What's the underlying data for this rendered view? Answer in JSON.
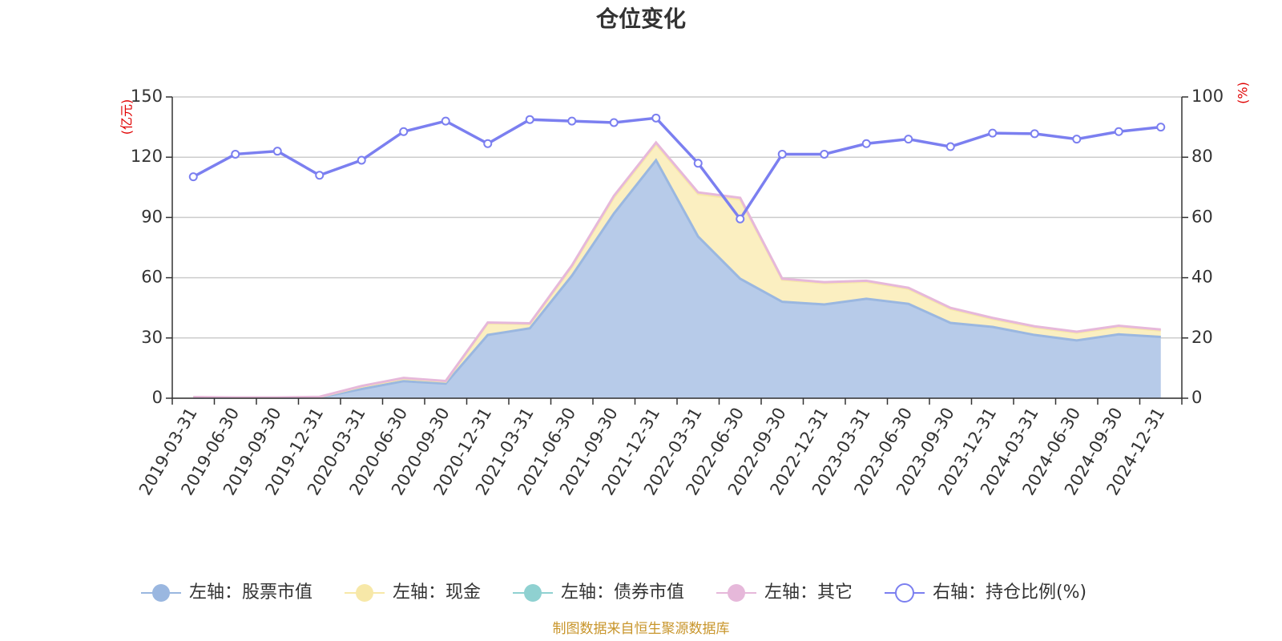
{
  "chart_data": {
    "type": "area",
    "title": "仓位变化",
    "left_axis_unit": "(亿元)",
    "right_axis_unit": "(%)",
    "categories": [
      "2019-03-31",
      "2019-06-30",
      "2019-09-30",
      "2019-12-31",
      "2020-03-31",
      "2020-06-30",
      "2020-09-30",
      "2020-12-31",
      "2021-03-31",
      "2021-06-30",
      "2021-09-30",
      "2021-12-31",
      "2022-03-31",
      "2022-06-30",
      "2022-09-30",
      "2022-12-31",
      "2023-03-31",
      "2023-06-30",
      "2023-09-30",
      "2023-12-31",
      "2024-03-31",
      "2024-06-30",
      "2024-09-30",
      "2024-12-31"
    ],
    "ylim_left": [
      0,
      150
    ],
    "yticks_left": [
      "0",
      "30",
      "60",
      "90",
      "120",
      "150"
    ],
    "ylim_right": [
      0,
      100
    ],
    "yticks_right": [
      "0",
      "20",
      "40",
      "60",
      "80",
      "100"
    ],
    "grid": true,
    "legend_position": "bottom",
    "series": [
      {
        "name": "左轴：股票市值",
        "axis": "left",
        "stacked": true,
        "color": "#9ab7e0",
        "fill": "#b7cbe9",
        "values": [
          0.3,
          0.2,
          0.2,
          0.4,
          4.6,
          8.5,
          7.3,
          31.5,
          34.8,
          61.0,
          92.0,
          118.5,
          80.5,
          59.5,
          48.0,
          46.7,
          49.5,
          47.0,
          37.5,
          35.5,
          31.5,
          28.8,
          31.8,
          30.5
        ]
      },
      {
        "name": "左轴：现金",
        "axis": "left",
        "stacked": true,
        "color": "#f7e8a8",
        "fill": "#fbefc1",
        "values": [
          0.2,
          0.1,
          0.1,
          0.2,
          1.2,
          1.2,
          1.0,
          5.8,
          2.2,
          4.5,
          8.0,
          8.0,
          21.2,
          39.5,
          11.0,
          10.6,
          8.5,
          7.5,
          7.0,
          4.0,
          3.8,
          3.8,
          3.8,
          3.2
        ]
      },
      {
        "name": "左轴：债券市值",
        "axis": "left",
        "stacked": true,
        "color": "#8fd1d1",
        "fill": "#b5e2e2",
        "values": [
          0,
          0,
          0,
          0,
          0,
          0,
          0,
          0,
          0,
          0,
          0,
          0,
          0,
          0,
          0,
          0,
          0,
          0,
          0,
          0,
          0,
          0,
          0,
          0
        ]
      },
      {
        "name": "左轴：其它",
        "axis": "left",
        "stacked": true,
        "color": "#e6b8da",
        "fill": "#f0d2e8",
        "values": [
          0.1,
          0.1,
          0.1,
          0.1,
          0.3,
          0.4,
          0.3,
          0.4,
          0.3,
          0.6,
          0.8,
          0.8,
          0.8,
          0.8,
          0.5,
          0.5,
          0.5,
          0.5,
          0.5,
          0.5,
          0.5,
          0.5,
          0.5,
          0.5
        ]
      },
      {
        "name": "右轴：持仓比例(%)",
        "axis": "right",
        "type": "line",
        "color": "#7b7ff0",
        "values": [
          73.5,
          81,
          82,
          74,
          79,
          88.5,
          92,
          84.5,
          92.5,
          92,
          91.5,
          93,
          78,
          59.5,
          81,
          81,
          84.5,
          86,
          83.5,
          88,
          87.8,
          86,
          88.5,
          90
        ]
      }
    ]
  },
  "source_note": "制图数据来自恒生聚源数据库"
}
